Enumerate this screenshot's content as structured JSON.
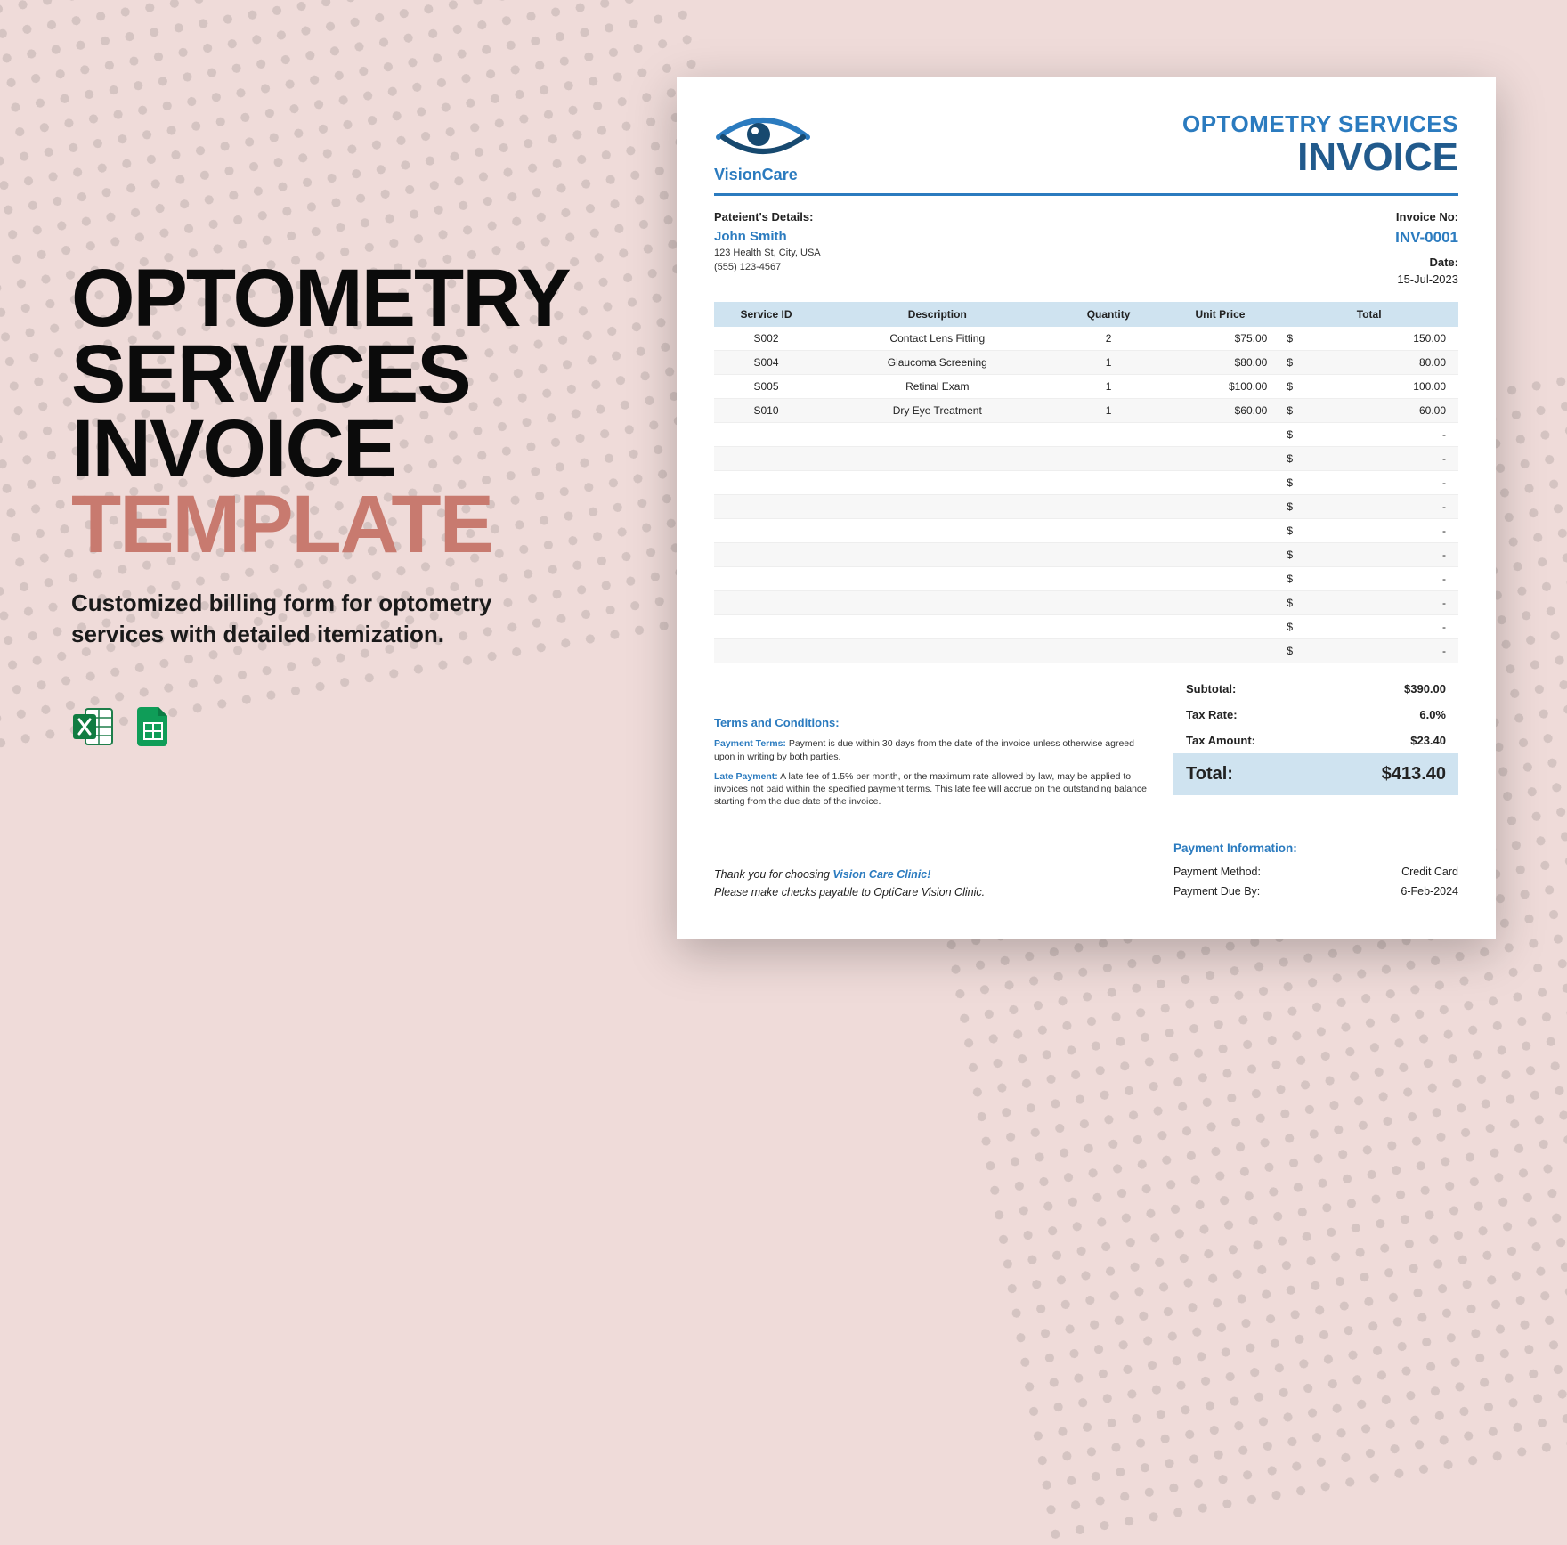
{
  "promo": {
    "title_line1": "OPTOMETRY",
    "title_line2": "SERVICES",
    "title_line3": "INVOICE",
    "title_accent": "TEMPLATE",
    "blurb": "Customized billing form for optometry services with detailed itemization.",
    "title_color": "#0b0b0b",
    "accent_color": "#c87a6f",
    "title_fontsize": 92
  },
  "background": {
    "color": "#efdbd9",
    "dot_color": "#1a1a1a",
    "dot_opacity": 0.12
  },
  "app_icons": [
    "excel-icon",
    "google-sheets-icon"
  ],
  "invoice": {
    "brand_name": "VisionCare",
    "brand_color": "#2b7bbf",
    "doc_title_line1": "OPTOMETRY SERVICES",
    "doc_title_line2": "INVOICE",
    "patient_label": "Pateient's Details:",
    "patient_name": "John Smith",
    "patient_addr": "123 Health St, City, USA",
    "patient_phone": "(555) 123-4567",
    "invno_label": "Invoice No:",
    "invno": "INV-0001",
    "date_label": "Date:",
    "date": "15-Jul-2023",
    "columns": [
      "Service ID",
      "Description",
      "Quantity",
      "Unit Price",
      "Total"
    ],
    "header_bg": "#cfe3f0",
    "row_alt_bg": "#f7f7f7",
    "currency": "$",
    "rows": [
      {
        "id": "S002",
        "desc": "Contact Lens Fitting",
        "qty": "2",
        "price": "$75.00",
        "total": "150.00"
      },
      {
        "id": "S004",
        "desc": "Glaucoma Screening",
        "qty": "1",
        "price": "$80.00",
        "total": "80.00"
      },
      {
        "id": "S005",
        "desc": "Retinal Exam",
        "qty": "1",
        "price": "$100.00",
        "total": "100.00"
      },
      {
        "id": "S010",
        "desc": "Dry Eye Treatment",
        "qty": "1",
        "price": "$60.00",
        "total": "60.00"
      },
      {
        "id": "",
        "desc": "",
        "qty": "",
        "price": "",
        "total": "-"
      },
      {
        "id": "",
        "desc": "",
        "qty": "",
        "price": "",
        "total": "-"
      },
      {
        "id": "",
        "desc": "",
        "qty": "",
        "price": "",
        "total": "-"
      },
      {
        "id": "",
        "desc": "",
        "qty": "",
        "price": "",
        "total": "-"
      },
      {
        "id": "",
        "desc": "",
        "qty": "",
        "price": "",
        "total": "-"
      },
      {
        "id": "",
        "desc": "",
        "qty": "",
        "price": "",
        "total": "-"
      },
      {
        "id": "",
        "desc": "",
        "qty": "",
        "price": "",
        "total": "-"
      },
      {
        "id": "",
        "desc": "",
        "qty": "",
        "price": "",
        "total": "-"
      },
      {
        "id": "",
        "desc": "",
        "qty": "",
        "price": "",
        "total": "-"
      },
      {
        "id": "",
        "desc": "",
        "qty": "",
        "price": "",
        "total": "-"
      }
    ],
    "totals": {
      "subtotal_label": "Subtotal:",
      "subtotal": "$390.00",
      "taxrate_label": "Tax Rate:",
      "taxrate": "6.0%",
      "taxamt_label": "Tax Amount:",
      "taxamt": "$23.40",
      "grand_label": "Total:",
      "grand": "$413.40",
      "grand_bg": "#cfe3f0"
    },
    "terms": {
      "heading": "Terms and Conditions:",
      "pt_label": "Payment Terms:",
      "pt_text": " Payment is due within 30 days from the date of the invoice unless otherwise agreed upon in writing by both parties.",
      "lp_label": "Late Payment:",
      "lp_text": " A late fee of 1.5% per month, or the maximum rate allowed by law, may be applied to invoices not paid within the specified payment terms. This late fee will accrue on the outstanding balance starting from the due date of the invoice."
    },
    "thanks_prefix": "Thank you for choosing ",
    "thanks_brand": "Vision Care Clinic!",
    "payable": "Please make checks payable to OptiCare Vision Clinic.",
    "payinfo": {
      "heading": "Payment Information:",
      "method_label": "Payment Method:",
      "method": "Credit Card",
      "due_label": "Payment Due By:",
      "due": "6-Feb-2024"
    }
  }
}
